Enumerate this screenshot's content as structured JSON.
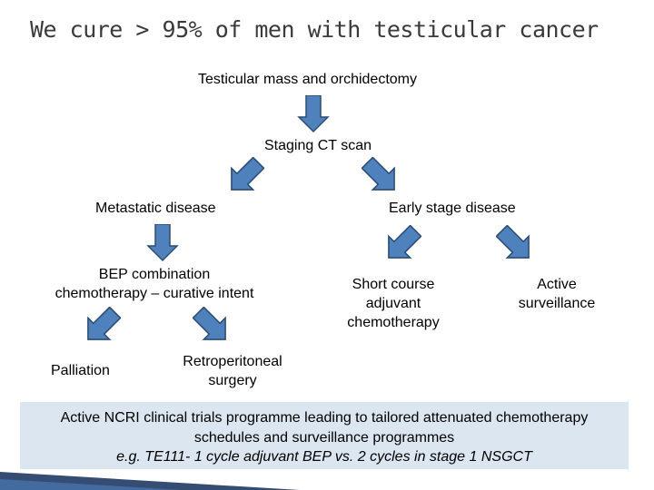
{
  "title": "We cure > 95% of men with testicular cancer",
  "nodes": {
    "mass": "Testicular mass and orchidectomy",
    "ct": "Staging CT scan",
    "metastatic": "Metastatic disease",
    "early": "Early stage disease",
    "bep_line1": "BEP combination",
    "bep_line2": "chemotherapy – curative intent",
    "short_line1": "Short course",
    "short_line2": "adjuvant",
    "short_line3": "chemotherapy",
    "active_line1": "Active",
    "active_line2": "surveillance",
    "palliation": "Palliation",
    "retro_line1": "Retroperitoneal",
    "retro_line2": "surgery"
  },
  "callout": {
    "line1": "Active NCRI clinical trials programme leading to tailored attenuated chemotherapy",
    "line2": "schedules and surveillance programmes",
    "line3": "e.g. TE111- 1 cycle adjuvant BEP vs. 2 cycles in stage 1 NSGCT"
  },
  "colors": {
    "arrow_fill": "#4f81bd",
    "arrow_stroke": "#2c4d75",
    "callout_bg": "#dbe6f1"
  }
}
